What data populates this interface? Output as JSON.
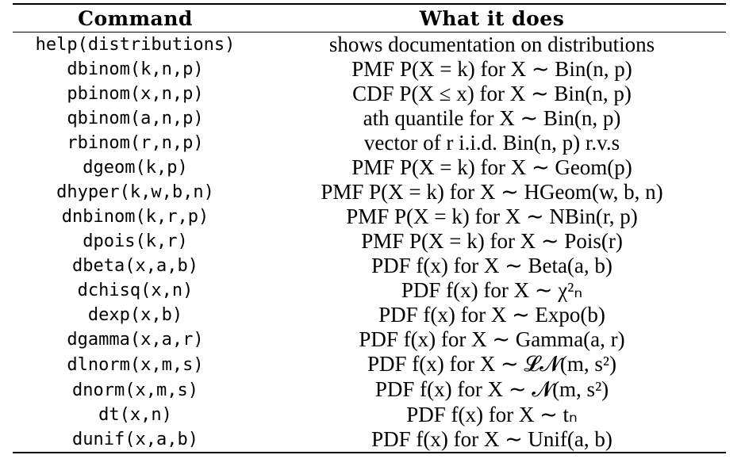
{
  "table": {
    "headers": [
      "Command",
      "What it does"
    ],
    "rows": [
      {
        "command": "help(distributions)",
        "description": "shows documentation on distributions"
      },
      {
        "command": "dbinom(k,n,p)",
        "description": "PMF P(X = k) for X ∼ Bin(n, p)"
      },
      {
        "command": "pbinom(x,n,p)",
        "description": "CDF P(X ≤ x) for X ∼ Bin(n, p)"
      },
      {
        "command": "qbinom(a,n,p)",
        "description": "ath quantile for X ∼ Bin(n, p)"
      },
      {
        "command": "rbinom(r,n,p)",
        "description": "vector of r i.i.d. Bin(n, p) r.v.s"
      },
      {
        "command": "dgeom(k,p)",
        "description": "PMF P(X = k) for X ∼ Geom(p)"
      },
      {
        "command": "dhyper(k,w,b,n)",
        "description": "PMF P(X = k) for X ∼ HGeom(w, b, n)"
      },
      {
        "command": "dnbinom(k,r,p)",
        "description": "PMF P(X = k) for X ∼ NBin(r, p)"
      },
      {
        "command": "dpois(k,r)",
        "description": "PMF P(X = k) for X ∼ Pois(r)"
      },
      {
        "command": "dbeta(x,a,b)",
        "description": "PDF f(x) for X ∼ Beta(a, b)"
      },
      {
        "command": "dchisq(x,n)",
        "description": "PDF f(x) for X ∼ χ²ₙ"
      },
      {
        "command": "dexp(x,b)",
        "description": "PDF f(x) for X ∼ Expo(b)"
      },
      {
        "command": "dgamma(x,a,r)",
        "description": "PDF f(x) for X ∼ Gamma(a, r)"
      },
      {
        "command": "dlnorm(x,m,s)",
        "description": "PDF f(x) for X ∼ 𝓛𝓝(m, s²)"
      },
      {
        "command": "dnorm(x,m,s)",
        "description": "PDF f(x) for X ∼ 𝓝(m, s²)"
      },
      {
        "command": "dt(x,n)",
        "description": "PDF f(x) for X ∼ tₙ"
      },
      {
        "command": "dunif(x,a,b)",
        "description": "PDF f(x) for X ∼ Unif(a, b)"
      }
    ]
  }
}
